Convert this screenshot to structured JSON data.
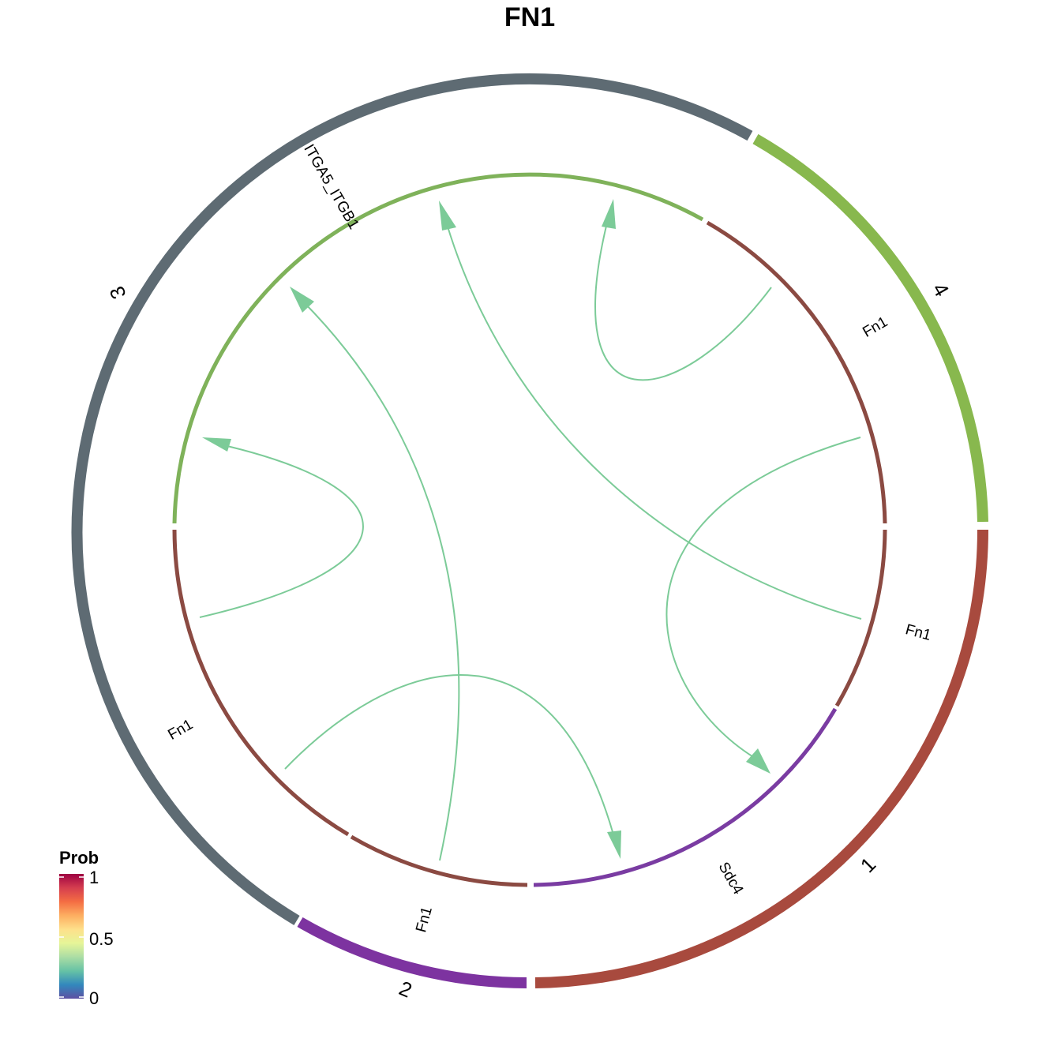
{
  "title": "FN1",
  "sectors": [
    {
      "label": "1",
      "color": "#A84A3E"
    },
    {
      "label": "2",
      "color": "#7D33A0"
    },
    {
      "label": "3",
      "color": "#5E6B73"
    },
    {
      "label": "4",
      "color": "#88B84E"
    }
  ],
  "genes": [
    {
      "label": "Fn1",
      "sector": "1",
      "color": "#8B4A42"
    },
    {
      "label": "Sdc4",
      "sector": "1",
      "color": "#7A3CA2"
    },
    {
      "label": "Fn1",
      "sector": "2",
      "color": "#8B4A42"
    },
    {
      "label": "Fn1",
      "sector": "3",
      "color": "#8B4A42"
    },
    {
      "label": "ITGA5_ITGB1",
      "sector": "3",
      "color": "#7FB25A"
    },
    {
      "label": "Fn1",
      "sector": "4",
      "color": "#8B4A42"
    }
  ],
  "links": [
    {
      "from": "1:Fn1",
      "to": "3:ITGA5_ITGB1"
    },
    {
      "from": "1:Fn1",
      "to": "1:Sdc4"
    },
    {
      "from": "2:Fn1",
      "to": "3:ITGA5_ITGB1"
    },
    {
      "from": "3:Fn1",
      "to": "1:Sdc4"
    },
    {
      "from": "3:Fn1",
      "to": "3:ITGA5_ITGB1"
    },
    {
      "from": "4:Fn1",
      "to": "3:ITGA5_ITGB1"
    }
  ],
  "link_color": "#7CCB98",
  "legend": {
    "title": "Prob",
    "ticks": [
      "1",
      "0.5",
      "0"
    ],
    "colors": [
      "#9E0142",
      "#D53E4F",
      "#F46D43",
      "#FDAE61",
      "#FEE08B",
      "#E6F598",
      "#ABDDA4",
      "#66C2A5",
      "#3288BD",
      "#5E4FA2"
    ]
  }
}
